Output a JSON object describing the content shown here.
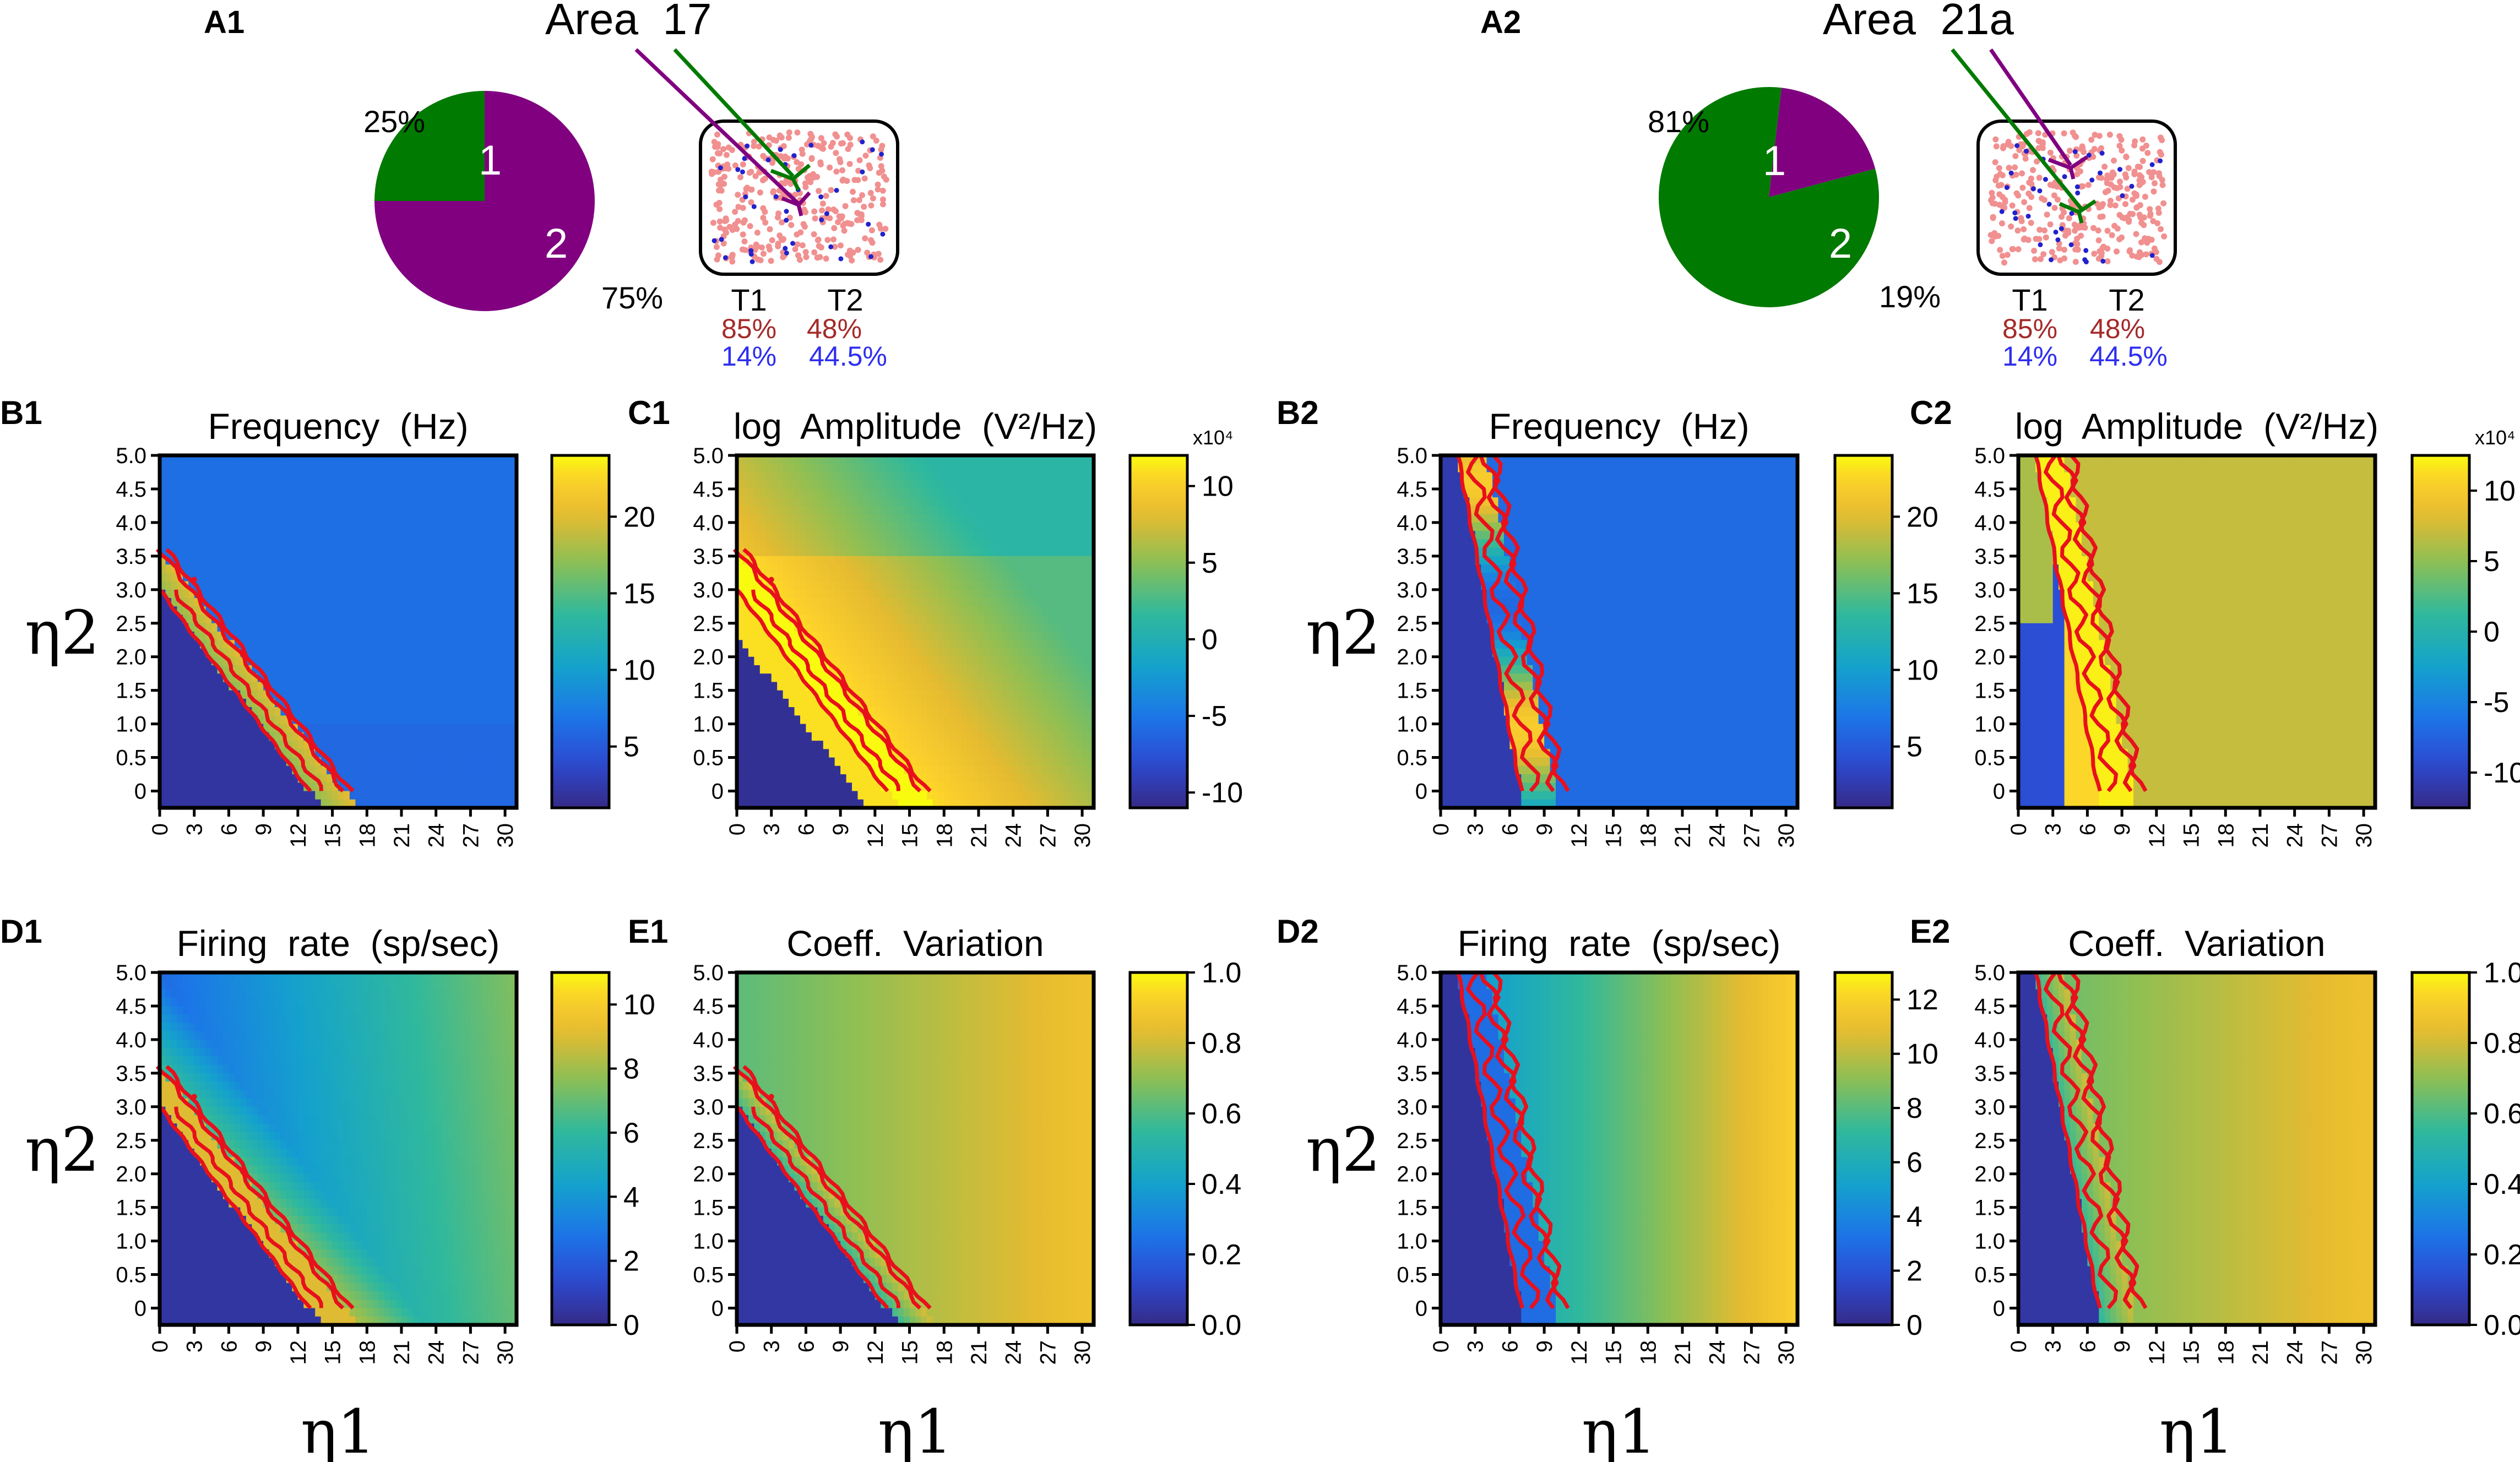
{
  "colors": {
    "purple": "#800080",
    "green": "#007a00",
    "contour": "#e8101c",
    "t_red": "#a52a2a",
    "t_blue": "#2e2ef0",
    "frame": "#000000"
  },
  "header": {
    "A1": {
      "panel_label": "A1",
      "area_label": "Area  17",
      "pie": {
        "slices": [
          {
            "name": "1",
            "percent": 25,
            "color": "#007a00",
            "pct_label": "25%"
          },
          {
            "name": "2",
            "percent": 75,
            "color": "#800080",
            "pct_label": "75%"
          }
        ]
      },
      "inset": {
        "t1_label": "T1",
        "t2_label": "T2",
        "t1_red": "85%",
        "t2_red": "48%",
        "t1_blue": "14%",
        "t2_blue": "44.5%"
      }
    },
    "A2": {
      "panel_label": "A2",
      "area_label": "Area  21a",
      "pie": {
        "slices": [
          {
            "name": "1",
            "percent": 81,
            "color": "#007a00",
            "pct_label": "81%"
          },
          {
            "name": "2",
            "percent": 19,
            "color": "#800080",
            "pct_label": "19%"
          }
        ]
      },
      "inset": {
        "t1_label": "T1",
        "t2_label": "T2",
        "t1_red": "85%",
        "t2_red": "48%",
        "t1_blue": "14%",
        "t2_blue": "44.5%"
      }
    }
  },
  "axes": {
    "x_label": "η1",
    "y_label": "η2",
    "x_ticks": [
      "0",
      "3",
      "6",
      "9",
      "12",
      "15",
      "18",
      "21",
      "24",
      "27",
      "30"
    ],
    "y_ticks": [
      "5.0",
      "4.5",
      "4.0",
      "3.5",
      "3.0",
      "2.5",
      "2.0",
      "1.5",
      "1.0",
      "0.5",
      "0"
    ]
  },
  "chart_data": [
    {
      "id": "B1",
      "type": "heatmap",
      "title": "Frequency  (Hz)",
      "metric": "frequency",
      "area": "17",
      "xlim": [
        0,
        31
      ],
      "ylim": [
        -0.25,
        5.0
      ],
      "colorbar": {
        "min": 1,
        "max": 24,
        "ticks": [
          {
            "v": 5,
            "label": "5"
          },
          {
            "v": 10,
            "label": "10"
          },
          {
            "v": 15,
            "label": "15"
          },
          {
            "v": 20,
            "label": "20"
          }
        ]
      }
    },
    {
      "id": "C1",
      "type": "heatmap",
      "title": "log  Amplitude  (V²/Hz)",
      "metric": "amplitude",
      "area": "17",
      "xlim": [
        0,
        31
      ],
      "ylim": [
        -0.25,
        5.0
      ],
      "colorbar": {
        "min": -11,
        "max": 12,
        "multiplier": "x10⁴",
        "ticks": [
          {
            "v": 10,
            "label": "10"
          },
          {
            "v": 5,
            "label": "5"
          },
          {
            "v": 0,
            "label": "0"
          },
          {
            "v": -5,
            "label": "-5"
          },
          {
            "v": -10,
            "label": "-10"
          }
        ]
      }
    },
    {
      "id": "B2",
      "type": "heatmap",
      "title": "Frequency  (Hz)",
      "metric": "frequency",
      "area": "21a",
      "xlim": [
        0,
        31
      ],
      "ylim": [
        -0.25,
        5.0
      ],
      "colorbar": {
        "min": 1,
        "max": 24,
        "ticks": [
          {
            "v": 5,
            "label": "5"
          },
          {
            "v": 10,
            "label": "10"
          },
          {
            "v": 15,
            "label": "15"
          },
          {
            "v": 20,
            "label": "20"
          }
        ]
      }
    },
    {
      "id": "C2",
      "type": "heatmap",
      "title": "log  Amplitude  (V²/Hz)",
      "metric": "amplitude",
      "area": "21a",
      "xlim": [
        0,
        31
      ],
      "ylim": [
        -0.25,
        5.0
      ],
      "colorbar": {
        "min": -12.5,
        "max": 12.5,
        "multiplier": "x10⁴",
        "ticks": [
          {
            "v": 10,
            "label": "10"
          },
          {
            "v": 5,
            "label": "5"
          },
          {
            "v": 0,
            "label": "0"
          },
          {
            "v": -5,
            "label": "-5"
          },
          {
            "v": -10,
            "label": "-10"
          }
        ]
      }
    },
    {
      "id": "D1",
      "type": "heatmap",
      "title": "Firing  rate  (sp/sec)",
      "metric": "rate",
      "area": "17",
      "xlim": [
        0,
        31
      ],
      "ylim": [
        -0.25,
        5.0
      ],
      "colorbar": {
        "min": 0,
        "max": 11,
        "ticks": [
          {
            "v": 0,
            "label": "0"
          },
          {
            "v": 2,
            "label": "2"
          },
          {
            "v": 4,
            "label": "4"
          },
          {
            "v": 6,
            "label": "6"
          },
          {
            "v": 8,
            "label": "8"
          },
          {
            "v": 10,
            "label": "10"
          }
        ]
      }
    },
    {
      "id": "E1",
      "type": "heatmap",
      "title": "Coeff.  Variation",
      "metric": "cv",
      "area": "17",
      "xlim": [
        0,
        31
      ],
      "ylim": [
        -0.25,
        5.0
      ],
      "colorbar": {
        "min": 0,
        "max": 1,
        "ticks": [
          {
            "v": 0,
            "label": "0.0"
          },
          {
            "v": 0.2,
            "label": "0.2"
          },
          {
            "v": 0.4,
            "label": "0.4"
          },
          {
            "v": 0.6,
            "label": "0.6"
          },
          {
            "v": 0.8,
            "label": "0.8"
          },
          {
            "v": 1.0,
            "label": "1.0"
          }
        ]
      }
    },
    {
      "id": "D2",
      "type": "heatmap",
      "title": "Firing  rate  (sp/sec)",
      "metric": "rate",
      "area": "21a",
      "xlim": [
        0,
        31
      ],
      "ylim": [
        -0.25,
        5.0
      ],
      "colorbar": {
        "min": 0,
        "max": 13,
        "ticks": [
          {
            "v": 0,
            "label": "0"
          },
          {
            "v": 2,
            "label": "2"
          },
          {
            "v": 4,
            "label": "4"
          },
          {
            "v": 6,
            "label": "6"
          },
          {
            "v": 8,
            "label": "8"
          },
          {
            "v": 10,
            "label": "10"
          },
          {
            "v": 12,
            "label": "12"
          }
        ]
      }
    },
    {
      "id": "E2",
      "type": "heatmap",
      "title": "Coeff.  Variation",
      "metric": "cv",
      "area": "21a",
      "xlim": [
        0,
        31
      ],
      "ylim": [
        -0.25,
        5.0
      ],
      "colorbar": {
        "min": 0,
        "max": 1,
        "ticks": [
          {
            "v": 0,
            "label": "0.0"
          },
          {
            "v": 0.2,
            "label": "0.2"
          },
          {
            "v": 0.4,
            "label": "0.4"
          },
          {
            "v": 0.6,
            "label": "0.6"
          },
          {
            "v": 0.8,
            "label": "0.8"
          },
          {
            "v": 1.0,
            "label": "1.0"
          }
        ]
      }
    }
  ],
  "boundaries": {
    "17": {
      "lower": [
        [
          0,
          3.0
        ],
        [
          13,
          0
        ]
      ],
      "upper": [
        [
          0,
          3.6
        ],
        [
          16,
          0
        ]
      ]
    },
    "21a": {
      "lower": [
        [
          1.5,
          5.0
        ],
        [
          7,
          0
        ]
      ],
      "upper": [
        [
          4,
          5.0
        ],
        [
          10,
          0
        ]
      ]
    }
  }
}
